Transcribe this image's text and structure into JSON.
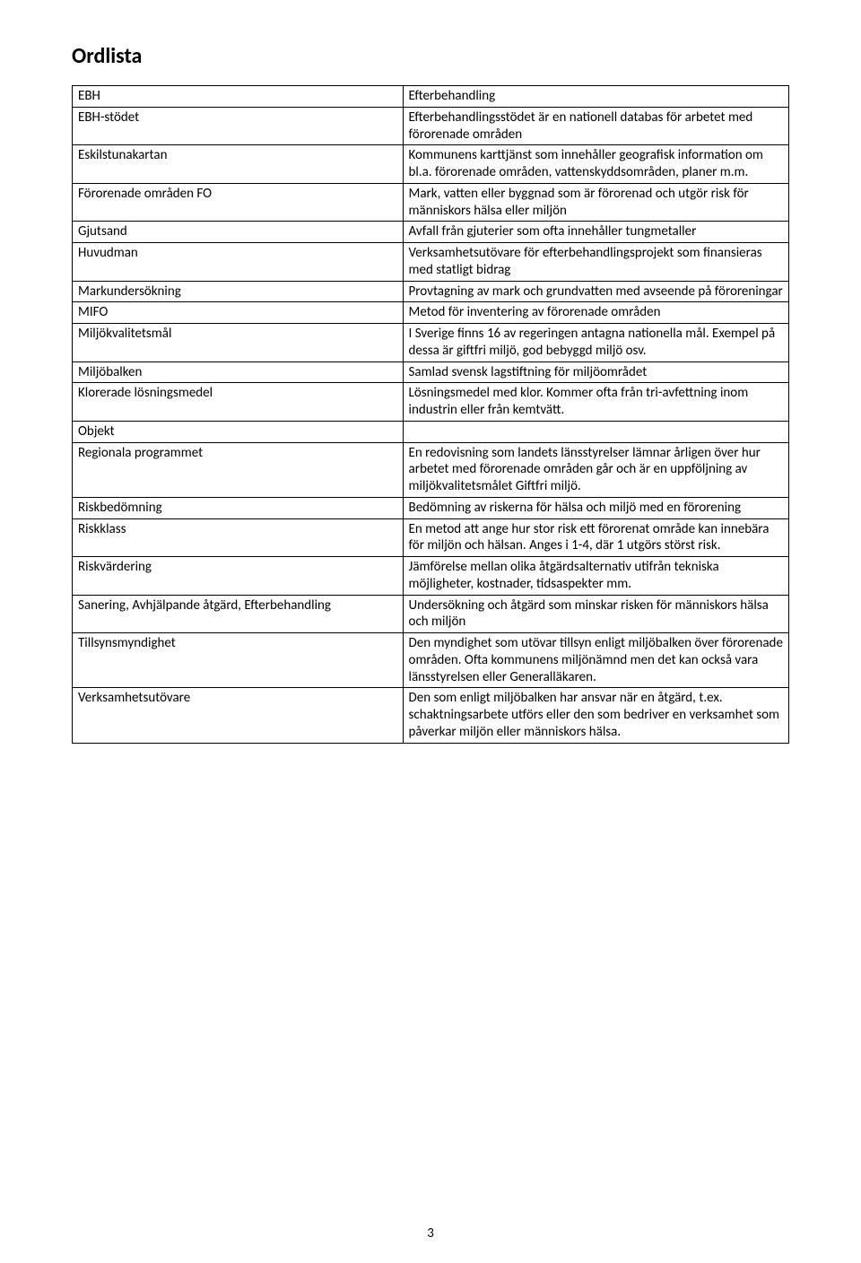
{
  "title": "Ordlista",
  "rows": [
    {
      "term": "EBH",
      "definition": "Efterbehandling"
    },
    {
      "term": "EBH-stödet",
      "definition": "Efterbehandlingsstödet är en nationell databas för arbetet med förorenade områden"
    },
    {
      "term": "Eskilstunakartan",
      "definition": "Kommunens karttjänst som innehåller geografisk information om bl.a. förorenade områden, vattenskyddsområden, planer m.m."
    },
    {
      "term": "Förorenade områden FO",
      "definition": "Mark, vatten eller byggnad som är förorenad och utgör risk för människors hälsa eller miljön"
    },
    {
      "term": "Gjutsand",
      "definition": "Avfall från gjuterier som ofta innehåller tungmetaller"
    },
    {
      "term": "Huvudman",
      "definition": "Verksamhetsutövare för efterbehandlingsprojekt som finansieras med statligt bidrag"
    },
    {
      "term": "Markundersökning",
      "definition": "Provtagning av mark och grundvatten med avseende på föroreningar"
    },
    {
      "term": "MIFO",
      "definition": "Metod för inventering av förorenade områden"
    },
    {
      "term": "Miljökvalitetsmål",
      "definition": "I Sverige finns 16 av regeringen antagna nationella mål. Exempel på dessa är giftfri miljö, god bebyggd miljö osv."
    },
    {
      "term": "Miljöbalken",
      "definition": "Samlad svensk lagstiftning för miljöområdet"
    },
    {
      "term": "Klorerade lösningsmedel",
      "definition": "Lösningsmedel med klor. Kommer ofta från tri-avfettning inom industrin eller från kemtvätt."
    },
    {
      "term": "Objekt",
      "definition": ""
    },
    {
      "term": "Regionala programmet",
      "definition": "En redovisning som landets länsstyrelser lämnar årligen över hur arbetet med förorenade områden går och är en uppföljning av miljökvalitetsmålet Giftfri miljö."
    },
    {
      "term": "Riskbedömning",
      "definition": "Bedömning av riskerna för hälsa och miljö med en förorening"
    },
    {
      "term": "Riskklass",
      "definition": "En metod att ange hur stor risk ett förorenat område kan innebära för miljön och hälsan. Anges i 1-4, där 1 utgörs störst risk."
    },
    {
      "term": "Riskvärdering",
      "definition": "Jämförelse mellan olika åtgärdsalternativ utifrån tekniska möjligheter, kostnader, tidsaspekter mm."
    },
    {
      "term": "Sanering, Avhjälpande åtgärd, Efterbehandling",
      "definition": "Undersökning och åtgärd som minskar risken för människors hälsa och miljön"
    },
    {
      "term": "Tillsynsmyndighet",
      "definition": "Den myndighet som utövar tillsyn enligt miljöbalken över förorenade områden. Ofta kommunens miljönämnd men det kan också vara länsstyrelsen eller Generalläkaren."
    },
    {
      "term": "Verksamhetsutövare",
      "definition": "Den som enligt miljöbalken har ansvar när en åtgärd, t.ex. schaktningsarbete utförs eller den som bedriver en verksamhet som påverkar miljön eller människors hälsa."
    }
  ],
  "page_number": "3"
}
